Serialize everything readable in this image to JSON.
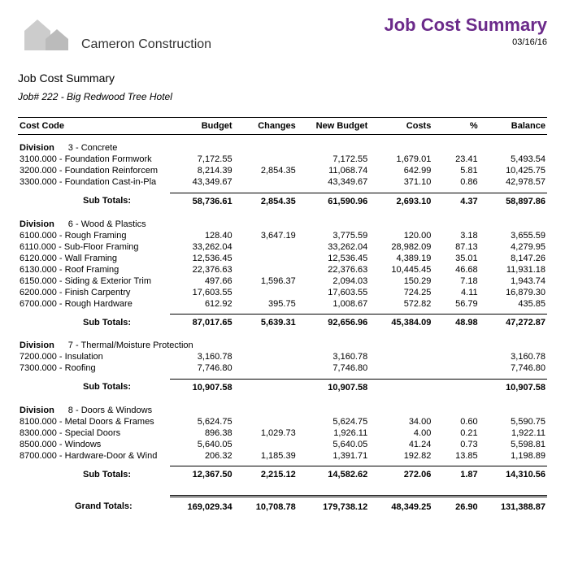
{
  "header": {
    "company": "Cameron Construction",
    "title": "Job Cost Summary",
    "date": "03/16/16"
  },
  "sub": {
    "title": "Job Cost Summary",
    "job": "Job# 222 - Big Redwood Tree Hotel"
  },
  "columns": [
    "Cost Code",
    "Budget",
    "Changes",
    "New Budget",
    "Costs",
    "%",
    "Balance"
  ],
  "divisions": [
    {
      "label": "Division",
      "name": "3 - Concrete",
      "rows": [
        {
          "code": "3100.000 - Foundation Formwork",
          "budget": "7,172.55",
          "changes": "",
          "newbudget": "7,172.55",
          "costs": "1,679.01",
          "pct": "23.41",
          "balance": "5,493.54"
        },
        {
          "code": "3200.000 - Foundation Reinforcem",
          "budget": "8,214.39",
          "changes": "2,854.35",
          "newbudget": "11,068.74",
          "costs": "642.99",
          "pct": "5.81",
          "balance": "10,425.75"
        },
        {
          "code": "3300.000 - Foundation Cast-in-Pla",
          "budget": "43,349.67",
          "changes": "",
          "newbudget": "43,349.67",
          "costs": "371.10",
          "pct": "0.86",
          "balance": "42,978.57"
        }
      ],
      "sub": {
        "label": "Sub Totals:",
        "budget": "58,736.61",
        "changes": "2,854.35",
        "newbudget": "61,590.96",
        "costs": "2,693.10",
        "pct": "4.37",
        "balance": "58,897.86"
      }
    },
    {
      "label": "Division",
      "name": "6 - Wood & Plastics",
      "rows": [
        {
          "code": "6100.000 - Rough Framing",
          "budget": "128.40",
          "changes": "3,647.19",
          "newbudget": "3,775.59",
          "costs": "120.00",
          "pct": "3.18",
          "balance": "3,655.59"
        },
        {
          "code": "6110.000 - Sub-Floor Framing",
          "budget": "33,262.04",
          "changes": "",
          "newbudget": "33,262.04",
          "costs": "28,982.09",
          "pct": "87.13",
          "balance": "4,279.95"
        },
        {
          "code": "6120.000 - Wall Framing",
          "budget": "12,536.45",
          "changes": "",
          "newbudget": "12,536.45",
          "costs": "4,389.19",
          "pct": "35.01",
          "balance": "8,147.26"
        },
        {
          "code": "6130.000 - Roof Framing",
          "budget": "22,376.63",
          "changes": "",
          "newbudget": "22,376.63",
          "costs": "10,445.45",
          "pct": "46.68",
          "balance": "11,931.18"
        },
        {
          "code": "6150.000 - Siding & Exterior Trim",
          "budget": "497.66",
          "changes": "1,596.37",
          "newbudget": "2,094.03",
          "costs": "150.29",
          "pct": "7.18",
          "balance": "1,943.74"
        },
        {
          "code": "6200.000 - Finish Carpentry",
          "budget": "17,603.55",
          "changes": "",
          "newbudget": "17,603.55",
          "costs": "724.25",
          "pct": "4.11",
          "balance": "16,879.30"
        },
        {
          "code": "6700.000 - Rough Hardware",
          "budget": "612.92",
          "changes": "395.75",
          "newbudget": "1,008.67",
          "costs": "572.82",
          "pct": "56.79",
          "balance": "435.85"
        }
      ],
      "sub": {
        "label": "Sub Totals:",
        "budget": "87,017.65",
        "changes": "5,639.31",
        "newbudget": "92,656.96",
        "costs": "45,384.09",
        "pct": "48.98",
        "balance": "47,272.87"
      }
    },
    {
      "label": "Division",
      "name": "7 - Thermal/Moisture Protection",
      "rows": [
        {
          "code": "7200.000 - Insulation",
          "budget": "3,160.78",
          "changes": "",
          "newbudget": "3,160.78",
          "costs": "",
          "pct": "",
          "balance": "3,160.78"
        },
        {
          "code": "7300.000 - Roofing",
          "budget": "7,746.80",
          "changes": "",
          "newbudget": "7,746.80",
          "costs": "",
          "pct": "",
          "balance": "7,746.80"
        }
      ],
      "sub": {
        "label": "Sub Totals:",
        "budget": "10,907.58",
        "changes": "",
        "newbudget": "10,907.58",
        "costs": "",
        "pct": "",
        "balance": "10,907.58"
      }
    },
    {
      "label": "Division",
      "name": "8 - Doors & Windows",
      "rows": [
        {
          "code": "8100.000 - Metal Doors & Frames",
          "budget": "5,624.75",
          "changes": "",
          "newbudget": "5,624.75",
          "costs": "34.00",
          "pct": "0.60",
          "balance": "5,590.75"
        },
        {
          "code": "8300.000 - Special Doors",
          "budget": "896.38",
          "changes": "1,029.73",
          "newbudget": "1,926.11",
          "costs": "4.00",
          "pct": "0.21",
          "balance": "1,922.11"
        },
        {
          "code": "8500.000 - Windows",
          "budget": "5,640.05",
          "changes": "",
          "newbudget": "5,640.05",
          "costs": "41.24",
          "pct": "0.73",
          "balance": "5,598.81"
        },
        {
          "code": "8700.000 - Hardware-Door & Wind",
          "budget": "206.32",
          "changes": "1,185.39",
          "newbudget": "1,391.71",
          "costs": "192.82",
          "pct": "13.85",
          "balance": "1,198.89"
        }
      ],
      "sub": {
        "label": "Sub Totals:",
        "budget": "12,367.50",
        "changes": "2,215.12",
        "newbudget": "14,582.62",
        "costs": "272.06",
        "pct": "1.87",
        "balance": "14,310.56"
      }
    }
  ],
  "grand": {
    "label": "Grand Totals:",
    "budget": "169,029.34",
    "changes": "10,708.78",
    "newbudget": "179,738.12",
    "costs": "48,349.25",
    "pct": "26.90",
    "balance": "131,388.87"
  }
}
